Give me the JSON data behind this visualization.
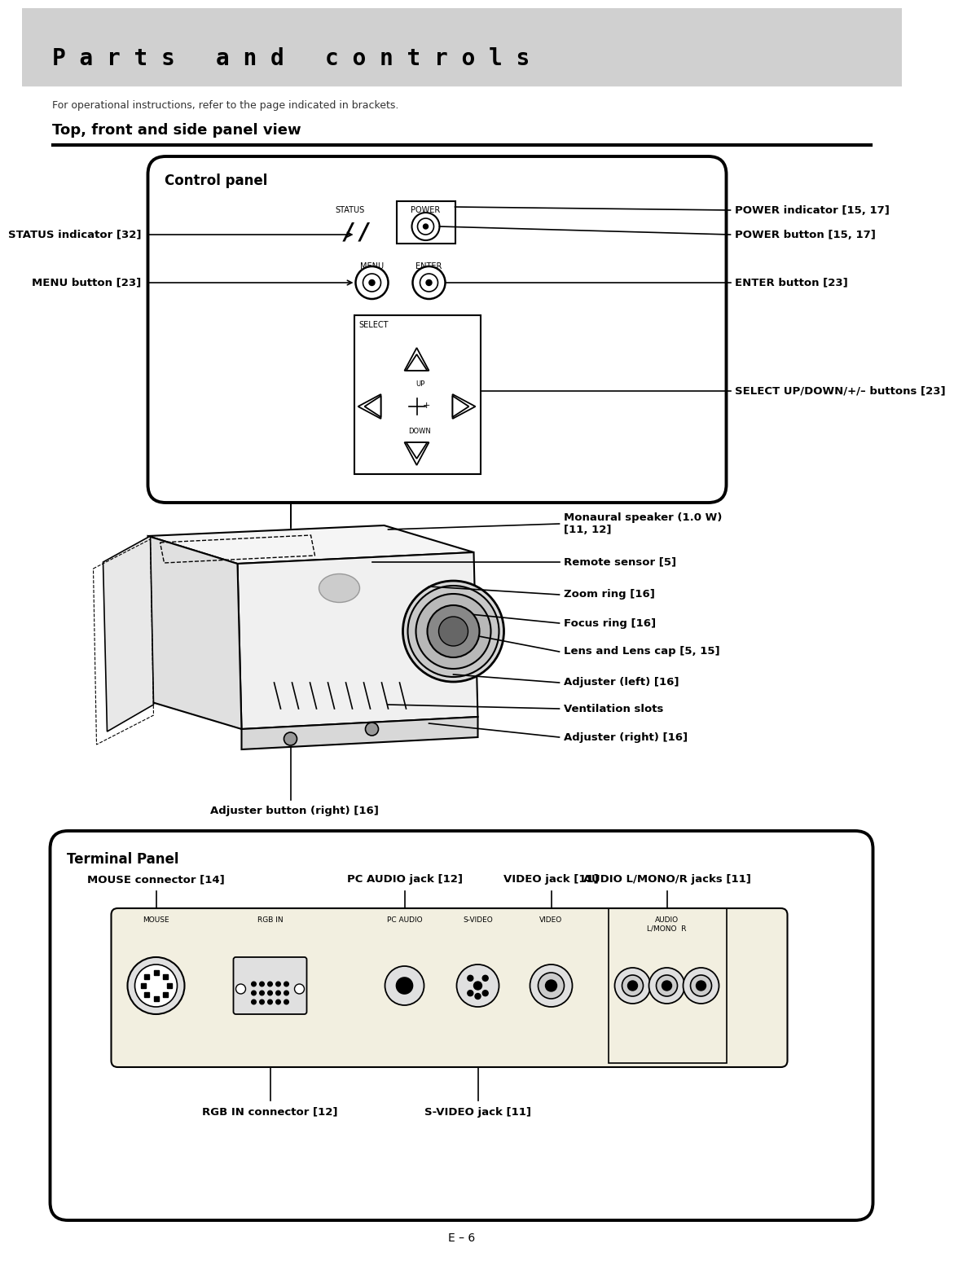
{
  "page_bg": "#e8e8e8",
  "content_bg": "#ffffff",
  "header_bg": "#d0d0d0",
  "header_text": "P a r t s   a n d   c o n t r o l s",
  "subtitle_text": "For operational instructions, refer to the page indicated in brackets.",
  "section_title": "Top, front and side panel view",
  "control_panel_title": "Control panel",
  "terminal_panel_title": "Terminal Panel",
  "page_number": "E – 6",
  "labels_right_control": [
    "POWER indicator [15, 17]",
    "POWER button [15, 17]",
    "ENTER button [23]",
    "SELECT UP/DOWN/+/– buttons [23]"
  ],
  "labels_left_control": [
    "STATUS indicator [32]",
    "MENU button [23]"
  ],
  "labels_right_projector": [
    "Monaural speaker (1.0 W)\n[11, 12]",
    "Remote sensor [5]",
    "Zoom ring [16]",
    "Focus ring [16]",
    "Lens and Lens cap [5, 15]",
    "Adjuster (left) [16]",
    "Ventilation slots",
    "Adjuster (right) [16]"
  ],
  "label_bottom_projector": "Adjuster button (right) [16]",
  "top_labels_terminal": [
    "MOUSE connector [14]",
    "PC AUDIO jack [12]",
    "VIDEO jack [11]",
    "AUDIO L/MONO/R jacks [11]"
  ],
  "bottom_labels_terminal": [
    "RGB IN connector [12]",
    "S-VIDEO jack [11]"
  ],
  "conn_labels_board": [
    "MOUSE",
    "RGB IN",
    "PC AUDIO",
    "S-VIDEO",
    "VIDEO",
    "AUDIO\nL/MONO  R"
  ]
}
